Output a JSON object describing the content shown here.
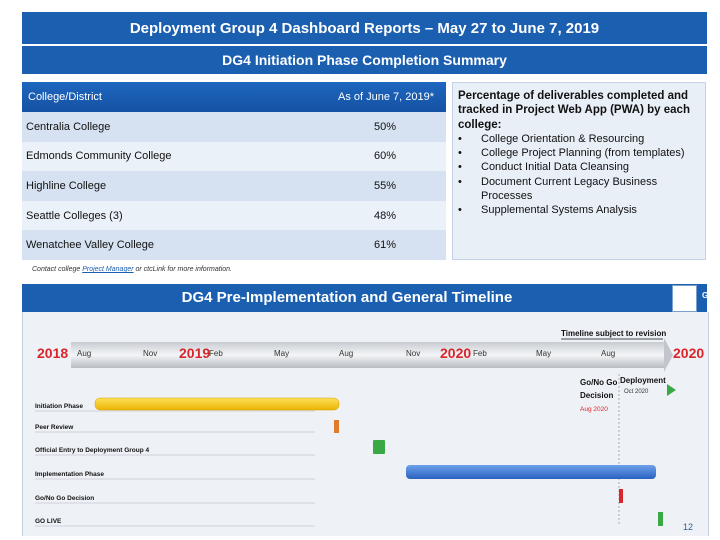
{
  "header": {
    "title": "Deployment Group 4 Dashboard Reports – May 27 to June 7, 2019"
  },
  "summary": {
    "title": "DG4 Initiation Phase Completion Summary",
    "col1": "College/District",
    "col2": "As of June 7, 2019*",
    "rows": [
      {
        "college": "Centralia College",
        "value": "50%"
      },
      {
        "college": "Edmonds Community College",
        "value": "60%"
      },
      {
        "college": "Highline College",
        "value": "55%"
      },
      {
        "college": "Seattle Colleges (3)",
        "value": "48%"
      },
      {
        "college": "Wenatchee Valley College",
        "value": "61%"
      }
    ]
  },
  "info": {
    "heading": "Percentage of deliverables completed and tracked in Project Web App (PWA) by each college:",
    "bullet": "•",
    "items": [
      "College Orientation & Resourcing",
      "College Project Planning (from templates)",
      "Conduct Initial Data Cleansing",
      "Document Current Legacy Business Processes",
      "Supplemental Systems Analysis"
    ]
  },
  "footnote": {
    "pre": "Contact college ",
    "link": "Project Manager",
    "post": " or ctcLink for more information."
  },
  "timeline": {
    "title": "DG4 Pre-Implementation and General Timeline",
    "status": "G",
    "subject": "Timeline subject to revision",
    "years": {
      "y2018": "2018",
      "y2019": "2019",
      "y2020a": "2020",
      "y2020b": "2020"
    },
    "months": [
      "Aug",
      "Nov",
      "Feb",
      "May",
      "Aug",
      "Nov",
      "Feb",
      "May",
      "Aug"
    ],
    "gonogo_label_1": "Go/No Go",
    "gonogo_label_2": "Decision",
    "gonogo_date": "Aug 2020",
    "deploy_label": "Deployment",
    "deploy_date": "Oct 2020",
    "phases": [
      "Initiation Phase",
      "Peer Review",
      "Official Entry to Deployment Group 4",
      "Implementation Phase",
      "Go/No Go Decision",
      "GO LIVE"
    ],
    "colors": {
      "initiation": "#f5c400",
      "peer": "#e07b2a",
      "entry": "#3aa845",
      "implementation": "#2e6fd0",
      "gonogo": "#d9262b",
      "golive": "#3aa845"
    }
  },
  "page_number": "12"
}
